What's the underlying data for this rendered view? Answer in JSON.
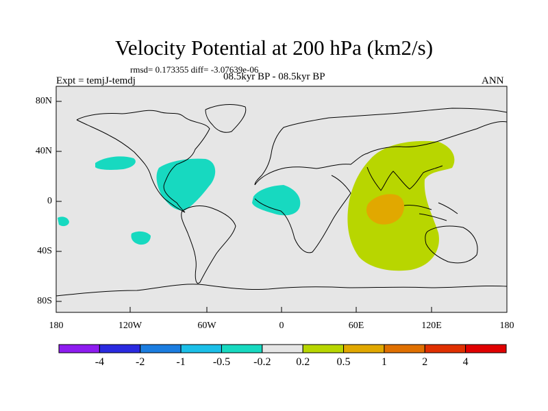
{
  "map": {
    "title": "Velocity Potential at 200 hPa (km2/s)",
    "stats": "rmsd= 0.173355 diff= -3.07639e-06",
    "experiment": "Expt = temjJ-temdj",
    "period": "08.5kyr BP - 08.5kyr BP",
    "season": "ANN",
    "lat_labels": [
      "80N",
      "40N",
      "0",
      "40S",
      "80S"
    ],
    "lon_labels": [
      "180",
      "120W",
      "60W",
      "0",
      "60E",
      "120E",
      "180"
    ],
    "colors": {
      "background": "#e6e6e6",
      "neg_weak": "#17d9c0",
      "pos_weak": "#b8d600",
      "pos_mid": "#e1a800"
    }
  },
  "colorbar": {
    "labels": [
      "-4",
      "-2",
      "-1",
      "-0.5",
      "-0.2",
      "0.2",
      "0.5",
      "1",
      "2",
      "4"
    ],
    "colors": [
      "#8e1cf0",
      "#2a2ae0",
      "#1b7de0",
      "#1bbfe8",
      "#17d9c0",
      "#e6e6e6",
      "#b8d600",
      "#e1a800",
      "#e07000",
      "#e03000",
      "#e00000"
    ]
  }
}
